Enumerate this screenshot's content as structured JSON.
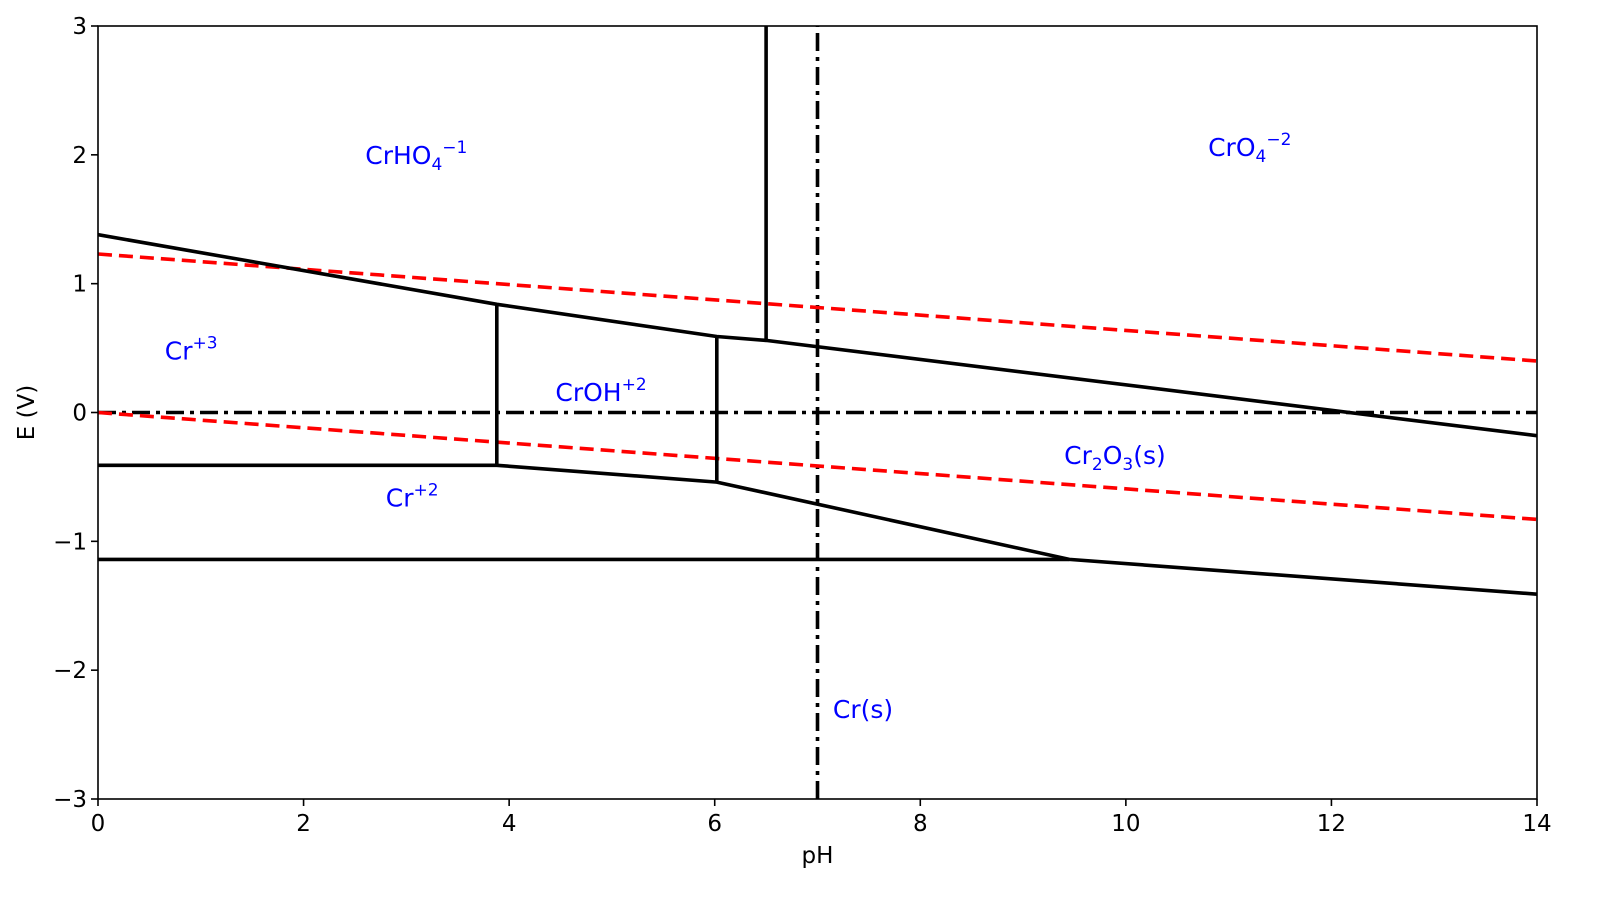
{
  "chart_data": {
    "type": "line",
    "xlabel": "pH",
    "ylabel": "E (V)",
    "xlim": [
      0,
      14
    ],
    "ylim": [
      -3,
      3
    ],
    "grid": false,
    "x_ticks": [
      0,
      2,
      4,
      6,
      8,
      10,
      12,
      14
    ],
    "y_ticks": [
      -3,
      -2,
      -1,
      0,
      1,
      2,
      3
    ],
    "x_tick_labels": [
      "0",
      "2",
      "4",
      "6",
      "8",
      "10",
      "12",
      "14"
    ],
    "y_tick_labels": [
      "−3",
      "−2",
      "−1",
      "0",
      "1",
      "2",
      "3"
    ],
    "colors": {
      "boundary": "#000000",
      "water": "#ff0000",
      "label": "#0000ff"
    },
    "boundaries": [
      {
        "style": "solid",
        "points": [
          [
            0,
            1.38
          ],
          [
            3.88,
            0.84
          ],
          [
            6.02,
            0.59
          ],
          [
            6.5,
            0.56
          ],
          [
            14,
            -0.18
          ]
        ]
      },
      {
        "style": "solid",
        "points": [
          [
            6.5,
            0.56
          ],
          [
            6.5,
            3.0
          ]
        ]
      },
      {
        "style": "solid",
        "points": [
          [
            3.88,
            0.84
          ],
          [
            3.88,
            -0.41
          ]
        ]
      },
      {
        "style": "solid",
        "points": [
          [
            6.02,
            0.59
          ],
          [
            6.02,
            -0.54
          ]
        ]
      },
      {
        "style": "solid",
        "points": [
          [
            0,
            -0.41
          ],
          [
            3.88,
            -0.41
          ],
          [
            6.02,
            -0.54
          ],
          [
            9.45,
            -1.14
          ],
          [
            14,
            -1.41
          ]
        ]
      },
      {
        "style": "solid",
        "points": [
          [
            0,
            -1.14
          ],
          [
            9.45,
            -1.14
          ]
        ]
      }
    ],
    "water_lines": [
      {
        "style": "dashed",
        "points": [
          [
            0,
            1.23
          ],
          [
            14,
            0.4
          ]
        ]
      },
      {
        "style": "dashed",
        "points": [
          [
            0,
            0.0
          ],
          [
            14,
            -0.83
          ]
        ]
      }
    ],
    "reference_lines": [
      {
        "style": "dashdot",
        "orientation": "horizontal",
        "value": 0
      },
      {
        "style": "dashdot",
        "orientation": "vertical",
        "value": 7
      }
    ],
    "annotations": [
      {
        "base": "CrHO",
        "sub": "4",
        "sup": "−1",
        "tail": "",
        "x": 2.6,
        "y": 1.93
      },
      {
        "base": "CrO",
        "sub": "4",
        "sup": "−2",
        "tail": "",
        "x": 10.8,
        "y": 1.99
      },
      {
        "base": "Cr",
        "sub": "",
        "sup": "+3",
        "tail": "",
        "x": 0.65,
        "y": 0.41
      },
      {
        "base": "CrOH",
        "sub": "",
        "sup": "+2",
        "tail": "",
        "x": 4.45,
        "y": 0.09
      },
      {
        "base": "Cr",
        "sub": "",
        "sup": "+2",
        "tail": "",
        "x": 2.8,
        "y": -0.73
      },
      {
        "base": "Cr",
        "sub": "2",
        "sup": "",
        "mid": "O",
        "sub2": "3",
        "tail": "(s)",
        "x": 9.4,
        "y": -0.4
      },
      {
        "base": "Cr(s)",
        "sub": "",
        "sup": "",
        "tail": "",
        "x": 7.15,
        "y": -2.37
      }
    ]
  }
}
